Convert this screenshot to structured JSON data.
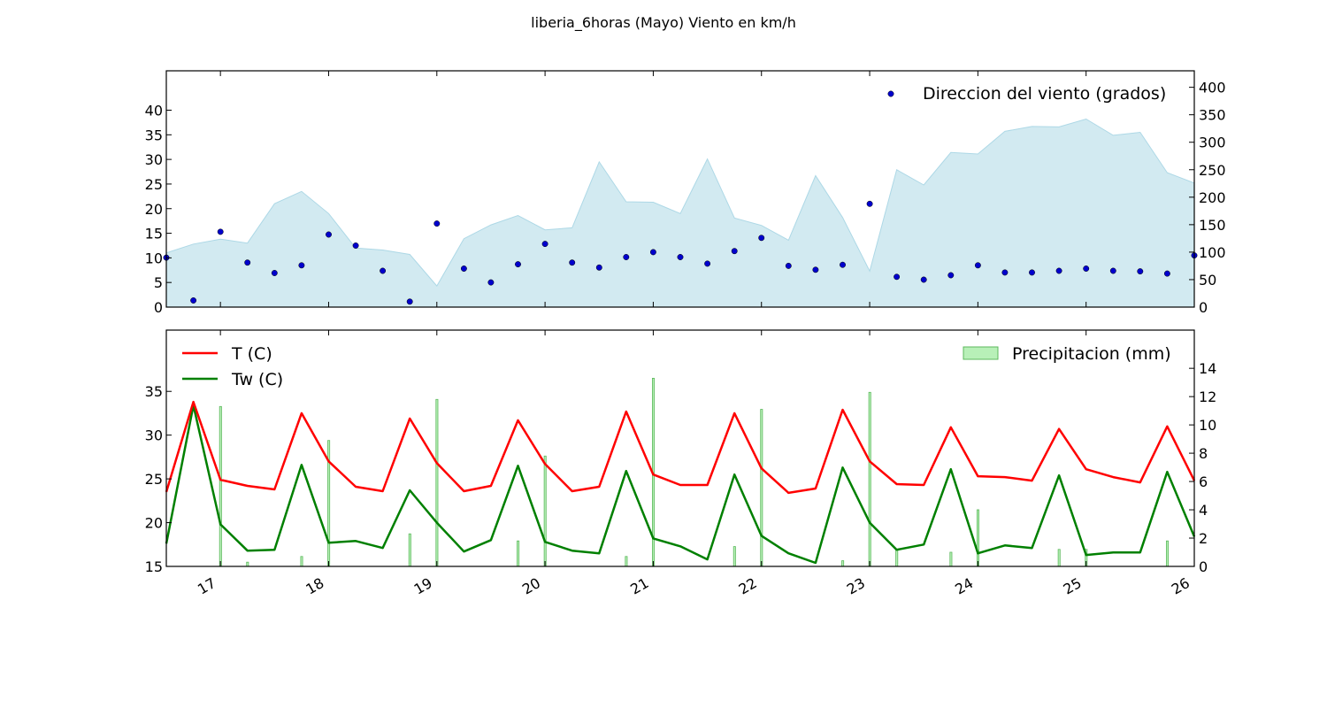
{
  "title": "liberia_6horas (Mayo) Viento en km/h",
  "colors": {
    "wind_area": "#add8e6",
    "direction_points": "#0000cd",
    "temperature": "#ff0000",
    "wet_bulb": "#008000",
    "precip_fill": "#b8f0b8",
    "precip_stroke": "#5cb85c"
  },
  "chart_data": [
    {
      "type": "area",
      "panel": "top",
      "x_axis": {
        "ticks": [
          17,
          18,
          19,
          20,
          21,
          22,
          23,
          24,
          25,
          26
        ],
        "xlim": [
          16.5,
          26.0
        ]
      },
      "left_axis": {
        "ylim": [
          0,
          48
        ],
        "ticks": [
          0,
          5,
          10,
          15,
          20,
          25,
          30,
          35,
          40
        ]
      },
      "right_axis": {
        "ylim": [
          0,
          430
        ],
        "ticks": [
          0,
          50,
          100,
          150,
          200,
          250,
          300,
          350,
          400
        ]
      },
      "legend": {
        "position": "top-right",
        "entries": [
          "Direccion del viento (grados)"
        ]
      },
      "series": [
        {
          "name": "",
          "axis": "left",
          "style": "filled-area",
          "x": [
            16.5,
            16.75,
            17.0,
            17.25,
            17.5,
            17.75,
            18.0,
            18.25,
            18.5,
            18.75,
            19.0,
            19.25,
            19.5,
            19.75,
            20.0,
            20.25,
            20.5,
            20.75,
            21.0,
            21.25,
            21.5,
            21.75,
            22.0,
            22.25,
            22.5,
            22.75,
            23.0,
            23.25,
            23.5,
            23.75,
            24.0,
            24.25,
            24.5,
            24.75,
            25.0,
            25.25,
            25.5,
            25.75,
            26.0
          ],
          "values": [
            11,
            12.8,
            13.8,
            13,
            21,
            23.5,
            19,
            12,
            11.6,
            10.7,
            4.3,
            13.9,
            16.7,
            18.6,
            15.7,
            16.1,
            29.5,
            21.4,
            21.3,
            19,
            30.1,
            18.1,
            16.6,
            13.6,
            26.7,
            18.2,
            7.3,
            27.9,
            24.8,
            31.4,
            31.1,
            35.7,
            36.7,
            36.6,
            38.2,
            34.9,
            35.5,
            27.3,
            25.2
          ]
        },
        {
          "name": "Direccion del viento (grados)",
          "axis": "right",
          "style": "scatter",
          "x": [
            16.5,
            16.75,
            17.0,
            17.25,
            17.5,
            17.75,
            18.0,
            18.25,
            18.5,
            18.75,
            19.0,
            19.25,
            19.5,
            19.75,
            20.0,
            20.25,
            20.5,
            20.75,
            21.0,
            21.25,
            21.5,
            21.75,
            22.0,
            22.25,
            22.5,
            22.75,
            23.0,
            23.25,
            23.5,
            23.75,
            24.0,
            24.25,
            24.5,
            24.75,
            25.0,
            25.25,
            25.5,
            25.75,
            26.0
          ],
          "values": [
            90,
            12,
            137,
            81,
            62,
            76,
            132,
            112,
            66,
            10,
            152,
            70,
            45,
            78,
            115,
            81,
            72,
            91,
            100,
            91,
            79,
            102,
            126,
            75,
            68,
            77,
            188,
            55,
            50,
            58,
            76,
            63,
            63,
            66,
            70,
            66,
            65,
            61,
            94
          ]
        }
      ]
    },
    {
      "type": "line",
      "panel": "bottom",
      "x_axis": {
        "ticks": [
          17,
          18,
          19,
          20,
          21,
          22,
          23,
          24,
          25,
          26
        ],
        "xlim": [
          16.5,
          26.0
        ]
      },
      "left_axis": {
        "ylim": [
          15,
          42
        ],
        "ticks": [
          15,
          20,
          25,
          30,
          35
        ]
      },
      "right_axis": {
        "ylim": [
          0,
          16.7
        ],
        "ticks": [
          0,
          2,
          4,
          6,
          8,
          10,
          12,
          14
        ]
      },
      "legend": [
        {
          "position": "top-left",
          "entries": [
            "T (C)",
            "Tw (C)"
          ]
        },
        {
          "position": "top-right",
          "entries": [
            "Precipitacion (mm)"
          ]
        }
      ],
      "series": [
        {
          "name": "T (C)",
          "axis": "left",
          "x": [
            16.5,
            16.75,
            17.0,
            17.25,
            17.5,
            17.75,
            18.0,
            18.25,
            18.5,
            18.75,
            19.0,
            19.25,
            19.5,
            19.75,
            20.0,
            20.25,
            20.5,
            20.75,
            21.0,
            21.25,
            21.5,
            21.75,
            22.0,
            22.25,
            22.5,
            22.75,
            23.0,
            23.25,
            23.5,
            23.75,
            24.0,
            24.25,
            24.5,
            24.75,
            25.0,
            25.25,
            25.5,
            25.75,
            26.0
          ],
          "values": [
            23.5,
            33.8,
            24.9,
            24.2,
            23.8,
            32.5,
            27.0,
            24.1,
            23.6,
            31.9,
            26.8,
            23.6,
            24.2,
            31.7,
            26.7,
            23.6,
            24.1,
            32.7,
            25.5,
            24.3,
            24.3,
            32.5,
            26.2,
            23.4,
            23.9,
            32.9,
            27.0,
            24.4,
            24.3,
            30.9,
            25.3,
            25.2,
            24.8,
            30.7,
            26.1,
            25.2,
            24.6,
            31.0,
            24.8
          ]
        },
        {
          "name": "Tw (C)",
          "axis": "left",
          "x": [
            16.5,
            16.75,
            17.0,
            17.25,
            17.5,
            17.75,
            18.0,
            18.25,
            18.5,
            18.75,
            19.0,
            19.25,
            19.5,
            19.75,
            20.0,
            20.25,
            20.5,
            20.75,
            21.0,
            21.25,
            21.5,
            21.75,
            22.0,
            22.25,
            22.5,
            22.75,
            23.0,
            23.25,
            23.5,
            23.75,
            24.0,
            24.25,
            24.5,
            24.75,
            25.0,
            25.25,
            25.5,
            25.75,
            26.0
          ],
          "values": [
            17.6,
            33.4,
            19.8,
            16.8,
            16.9,
            26.6,
            17.7,
            17.9,
            17.1,
            23.7,
            20.0,
            16.7,
            18.0,
            26.5,
            17.8,
            16.8,
            16.5,
            25.9,
            18.2,
            17.3,
            15.8,
            25.5,
            18.5,
            16.5,
            15.4,
            26.3,
            20.0,
            16.9,
            17.5,
            26.1,
            16.5,
            17.4,
            17.1,
            25.4,
            16.3,
            16.6,
            16.6,
            25.8,
            18.4
          ]
        },
        {
          "name": "Precipitacion (mm)",
          "axis": "right",
          "style": "bar",
          "x": [
            17.0,
            17.25,
            17.75,
            18.0,
            18.75,
            19.0,
            19.75,
            20.0,
            20.75,
            21.0,
            21.75,
            22.0,
            22.75,
            23.0,
            23.25,
            23.75,
            24.0,
            24.75,
            25.0,
            25.75
          ],
          "values": [
            11.3,
            0.3,
            0.7,
            8.9,
            2.3,
            11.8,
            1.8,
            7.8,
            0.7,
            13.3,
            1.4,
            11.1,
            0.4,
            12.3,
            1.2,
            1.0,
            4.0,
            1.2,
            1.2,
            1.8
          ]
        }
      ]
    }
  ]
}
